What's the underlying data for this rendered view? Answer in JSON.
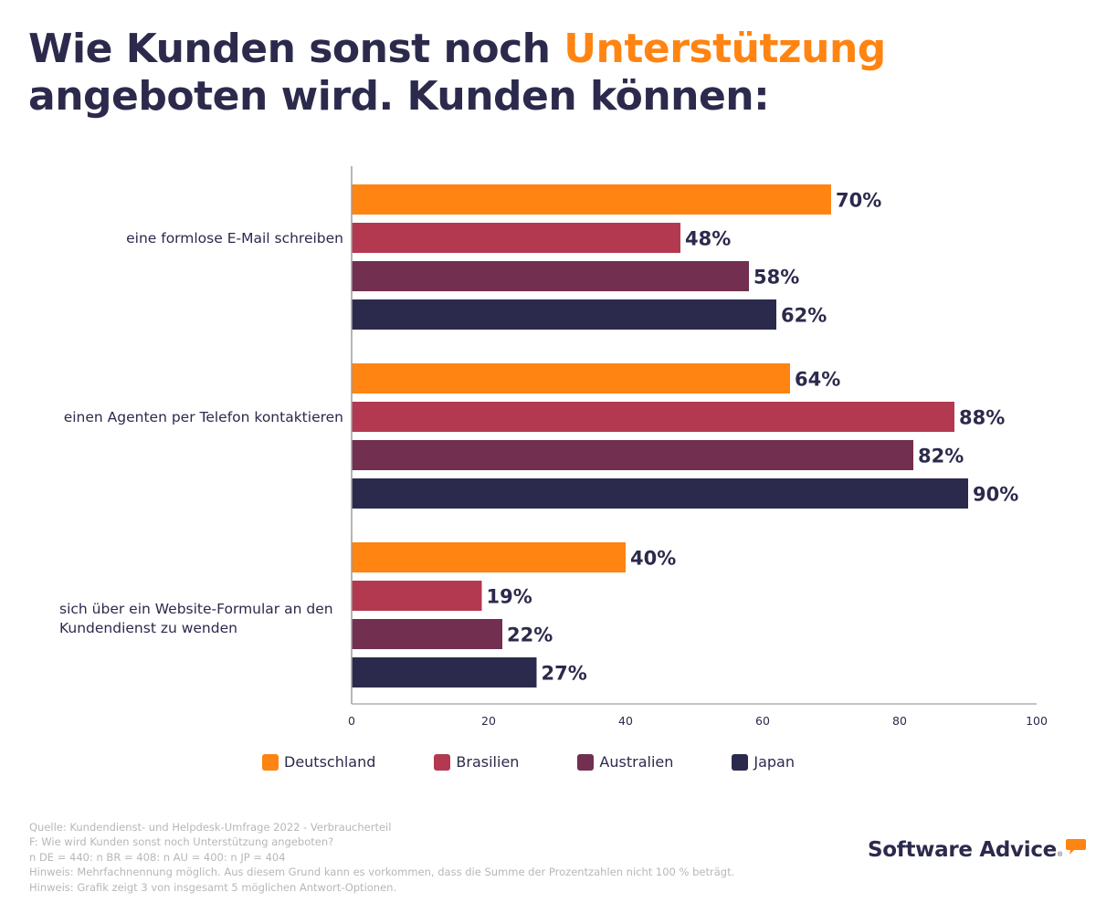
{
  "header": {
    "title_part1": "Wie Kunden sonst noch ",
    "title_accent": "Unterstützung",
    "title_part2": "angeboten wird. Kunden können:"
  },
  "colors": {
    "title": "#2c2a4c",
    "accent": "#ff8412",
    "axis": "#9e9e9e",
    "footnote": "#b7b7b7"
  },
  "chart_data": {
    "type": "bar",
    "orientation": "horizontal",
    "title": "Wie Kunden sonst noch Unterstützung angeboten wird. Kunden können:",
    "xlabel": "",
    "ylabel": "",
    "xlim": [
      0,
      100
    ],
    "xticks": [
      0,
      20,
      40,
      60,
      80,
      100
    ],
    "grid": false,
    "legend_position": "bottom",
    "value_suffix": "%",
    "categories": [
      "eine formlose E-Mail schreiben",
      "einen Agenten per Telefon kontaktieren",
      "sich über ein Website-Formular an den Kundendienst zu wenden"
    ],
    "category_lines": [
      [
        "eine formlose E-Mail schreiben"
      ],
      [
        "einen Agenten per Telefon kontaktieren"
      ],
      [
        "sich über ein Website-Formular an den",
        "Kundendienst zu wenden"
      ]
    ],
    "series": [
      {
        "name": "Deutschland",
        "color": "#ff8412",
        "values": [
          70,
          64,
          40
        ]
      },
      {
        "name": "Brasilien",
        "color": "#b33951",
        "values": [
          48,
          88,
          19
        ]
      },
      {
        "name": "Australien",
        "color": "#722f4f",
        "values": [
          58,
          82,
          22
        ]
      },
      {
        "name": "Japan",
        "color": "#2c2a4c",
        "values": [
          62,
          90,
          27
        ]
      }
    ]
  },
  "footnotes": [
    "Quelle: Kundendienst- und Helpdesk-Umfrage 2022 - Verbraucherteil",
    "F: Wie wird Kunden sonst noch Unterstützung angeboten?",
    "n DE = 440: n BR = 408: n AU = 400: n JP = 404",
    "Hinweis: Mehrfachnennung möglich. Aus diesem Grund kann es vorkommen, dass die Summe der Prozentzahlen nicht 100 % beträgt.",
    "Hinweis: Grafik zeigt 3 von insgesamt 5 möglichen Antwort-Optionen."
  ],
  "logo": {
    "text": "Software Advice",
    "registered": "®",
    "icon": "speech-bubble-icon"
  }
}
